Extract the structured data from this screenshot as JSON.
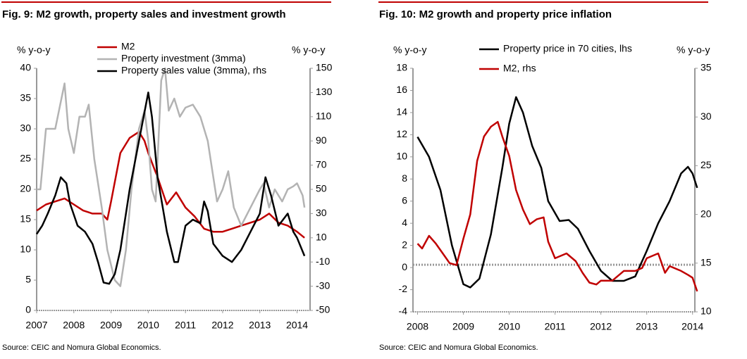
{
  "chart_data": [
    {
      "type": "line",
      "title": "Fig. 9: M2 growth, property sales and investment growth",
      "source": "Source: CEIC and Nomura Global Economics.",
      "ylabel": "% y-o-y",
      "y2label": "% y-o-y",
      "xlim": [
        2007,
        2014.35
      ],
      "xticks": [
        2007,
        2008,
        2009,
        2010,
        2011,
        2012,
        2013,
        2014
      ],
      "ylim": [
        0,
        40
      ],
      "yticks": [
        0,
        5,
        10,
        15,
        20,
        25,
        30,
        35,
        40
      ],
      "y2lim": [
        -50,
        150
      ],
      "y2ticks": [
        -50,
        -30,
        -10,
        10,
        30,
        50,
        70,
        90,
        110,
        130,
        150
      ],
      "legend": "top",
      "series": [
        {
          "name": "M2",
          "color": "#c00000",
          "x": [
            2007.0,
            2007.25,
            2007.5,
            2007.75,
            2008.0,
            2008.25,
            2008.5,
            2008.75,
            2008.9,
            2009.0,
            2009.25,
            2009.5,
            2009.75,
            2009.9,
            2010.0,
            2010.25,
            2010.5,
            2010.75,
            2011.0,
            2011.25,
            2011.5,
            2011.75,
            2012.0,
            2012.25,
            2012.5,
            2012.75,
            2013.0,
            2013.25,
            2013.5,
            2013.75,
            2014.0,
            2014.2
          ],
          "values": [
            16.5,
            17.5,
            18,
            18.5,
            17.5,
            16.5,
            16,
            16,
            15,
            18,
            26,
            28.5,
            29.5,
            28,
            26,
            22,
            17.5,
            19.5,
            17,
            15.5,
            13.5,
            13,
            13,
            13.5,
            14,
            14.5,
            15,
            16,
            14.5,
            14,
            13,
            12
          ]
        },
        {
          "name": "Property investment (3mma)",
          "color": "#b3b3b3",
          "x": [
            2007.0,
            2007.1,
            2007.25,
            2007.5,
            2007.75,
            2007.85,
            2008.0,
            2008.15,
            2008.3,
            2008.4,
            2008.55,
            2008.75,
            2008.9,
            2009.1,
            2009.25,
            2009.4,
            2009.55,
            2009.75,
            2009.9,
            2010.0,
            2010.1,
            2010.2,
            2010.35,
            2010.45,
            2010.55,
            2010.7,
            2010.85,
            2011.0,
            2011.2,
            2011.4,
            2011.6,
            2011.75,
            2011.85,
            2012.0,
            2012.15,
            2012.3,
            2012.5,
            2012.75,
            2013.0,
            2013.1,
            2013.25,
            2013.4,
            2013.6,
            2013.75,
            2013.9,
            2014.0,
            2014.15,
            2014.2
          ],
          "values": [
            20,
            20,
            30,
            30,
            37.5,
            30,
            26,
            32,
            32,
            34,
            25,
            17,
            10,
            5,
            4,
            10,
            20,
            30,
            33,
            28,
            20,
            18,
            38,
            40,
            33,
            35,
            32,
            33.5,
            34,
            32,
            28,
            22,
            18,
            20,
            23,
            17,
            14,
            17,
            20,
            21,
            17,
            20,
            18,
            20,
            20.5,
            21,
            19,
            17
          ]
        },
        {
          "name": "Property sales value (3mma), rhs",
          "color": "#000000",
          "axis": "y2",
          "x": [
            2007.0,
            2007.15,
            2007.3,
            2007.5,
            2007.65,
            2007.8,
            2007.9,
            2008.1,
            2008.3,
            2008.5,
            2008.65,
            2008.8,
            2008.95,
            2009.1,
            2009.25,
            2009.5,
            2009.75,
            2010.0,
            2010.1,
            2010.25,
            2010.5,
            2010.7,
            2010.8,
            2010.9,
            2011.0,
            2011.2,
            2011.4,
            2011.5,
            2011.6,
            2011.75,
            2012.0,
            2012.25,
            2012.5,
            2012.75,
            2013.0,
            2013.15,
            2013.3,
            2013.5,
            2013.75,
            2013.9,
            2014.0,
            2014.2
          ],
          "values": [
            13,
            20,
            30,
            45,
            60,
            55,
            38,
            20,
            15,
            5,
            -10,
            -27,
            -28,
            -20,
            0,
            50,
            90,
            130,
            110,
            60,
            15,
            -10,
            -10,
            5,
            20,
            25,
            22,
            40,
            32,
            5,
            -5,
            -10,
            0,
            15,
            30,
            60,
            45,
            20,
            30,
            15,
            10,
            -5
          ]
        }
      ]
    },
    {
      "type": "line",
      "title": "Fig. 10: M2 growth and property price inflation",
      "source": "Source: CEIC and Nomura Global Economics.",
      "ylabel": "% y-o-y",
      "y2label": "% y-o-y",
      "xlim": [
        2007.9,
        2014.05
      ],
      "xticks": [
        2008,
        2009,
        2010,
        2011,
        2012,
        2013,
        2014
      ],
      "ylim": [
        -4,
        18
      ],
      "yticks": [
        -4,
        -2,
        0,
        2,
        4,
        6,
        8,
        10,
        12,
        14,
        16,
        18
      ],
      "y2lim": [
        10,
        35
      ],
      "y2ticks": [
        10,
        15,
        20,
        25,
        30,
        35
      ],
      "legend": "top",
      "series": [
        {
          "name": "Property price in 70 cities, lhs",
          "color": "#000000",
          "x": [
            2008.0,
            2008.25,
            2008.5,
            2008.75,
            2009.0,
            2009.15,
            2009.35,
            2009.6,
            2009.85,
            2010.0,
            2010.15,
            2010.3,
            2010.5,
            2010.7,
            2010.85,
            2011.1,
            2011.3,
            2011.5,
            2011.75,
            2012.0,
            2012.25,
            2012.5,
            2012.75,
            2013.0,
            2013.25,
            2013.5,
            2013.75,
            2013.9,
            2014.0,
            2014.1
          ],
          "values": [
            11.8,
            10,
            7,
            2,
            -1.5,
            -1.8,
            -1,
            3,
            9,
            13,
            15.4,
            14,
            11,
            9,
            6,
            4.2,
            4.3,
            3.5,
            1.5,
            -0.3,
            -1.2,
            -1.2,
            -0.8,
            1.5,
            4,
            6,
            8.5,
            9.1,
            8.5,
            7.2
          ]
        },
        {
          "name": "M2, rhs",
          "color": "#c00000",
          "axis": "y2",
          "x": [
            2008.0,
            2008.1,
            2008.25,
            2008.4,
            2008.55,
            2008.7,
            2008.85,
            2009.0,
            2009.15,
            2009.3,
            2009.45,
            2009.6,
            2009.75,
            2009.85,
            2010.0,
            2010.15,
            2010.3,
            2010.45,
            2010.6,
            2010.75,
            2010.85,
            2011.0,
            2011.25,
            2011.45,
            2011.6,
            2011.75,
            2011.9,
            2012.0,
            2012.25,
            2012.5,
            2012.75,
            2012.9,
            2013.0,
            2013.25,
            2013.4,
            2013.5,
            2013.75,
            2013.9,
            2014.0,
            2014.1
          ],
          "values": [
            17,
            16.5,
            17.8,
            17,
            16,
            15,
            14.8,
            17.5,
            20,
            25.5,
            28,
            29,
            29.5,
            28,
            26,
            22.5,
            20.5,
            19,
            19.5,
            19.7,
            17.2,
            15.5,
            16,
            15.2,
            14,
            13,
            12.8,
            13.2,
            13.2,
            14.2,
            14.2,
            14.5,
            15.5,
            16,
            14,
            14.7,
            14.2,
            13.8,
            13.5,
            12.1
          ]
        }
      ]
    }
  ]
}
